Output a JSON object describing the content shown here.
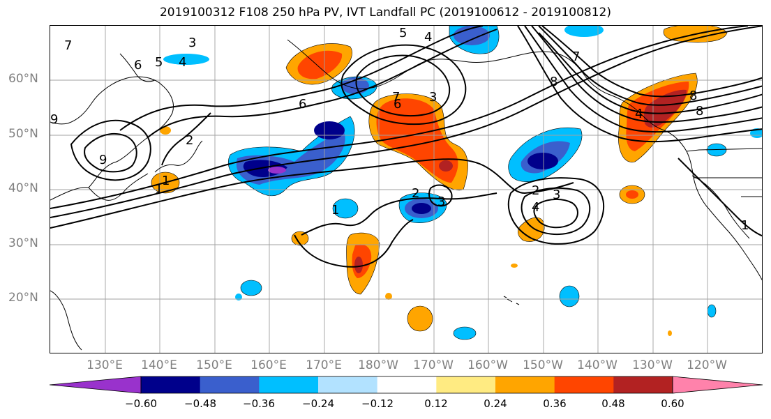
{
  "title": "2019100312 F108 250 hPa PV, IVT Landfall PC (2019100612 - 2019100812)",
  "lat_labels": [
    "60°N",
    "50°N",
    "40°N",
    "30°N",
    "20°N"
  ],
  "lon_labels": [
    "130°E",
    "140°E",
    "150°E",
    "160°E",
    "170°E",
    "180°W",
    "170°W",
    "160°W",
    "150°W",
    "140°W",
    "130°W",
    "120°W"
  ],
  "colorbar": {
    "ticks": [
      "−0.60",
      "−0.48",
      "−0.36",
      "−0.24",
      "−0.12",
      "0.12",
      "0.24",
      "0.36",
      "0.48",
      "0.60"
    ],
    "colors": [
      "#9932cc",
      "#00008b",
      "#3a5fcd",
      "#00bfff",
      "#b2e2ff",
      "#ffffff",
      "#ffeb82",
      "#ffa500",
      "#ff4500",
      "#b22222",
      "#ff82ab"
    ]
  },
  "contour_labels": [
    "7",
    "3",
    "6",
    "5",
    "4",
    "5",
    "4",
    "7",
    "8",
    "6",
    "2",
    "6",
    "9",
    "1",
    "1",
    "2",
    "3",
    "2",
    "3",
    "4",
    "1",
    "3",
    "7",
    "8",
    "4",
    "8",
    "1",
    "9"
  ]
}
